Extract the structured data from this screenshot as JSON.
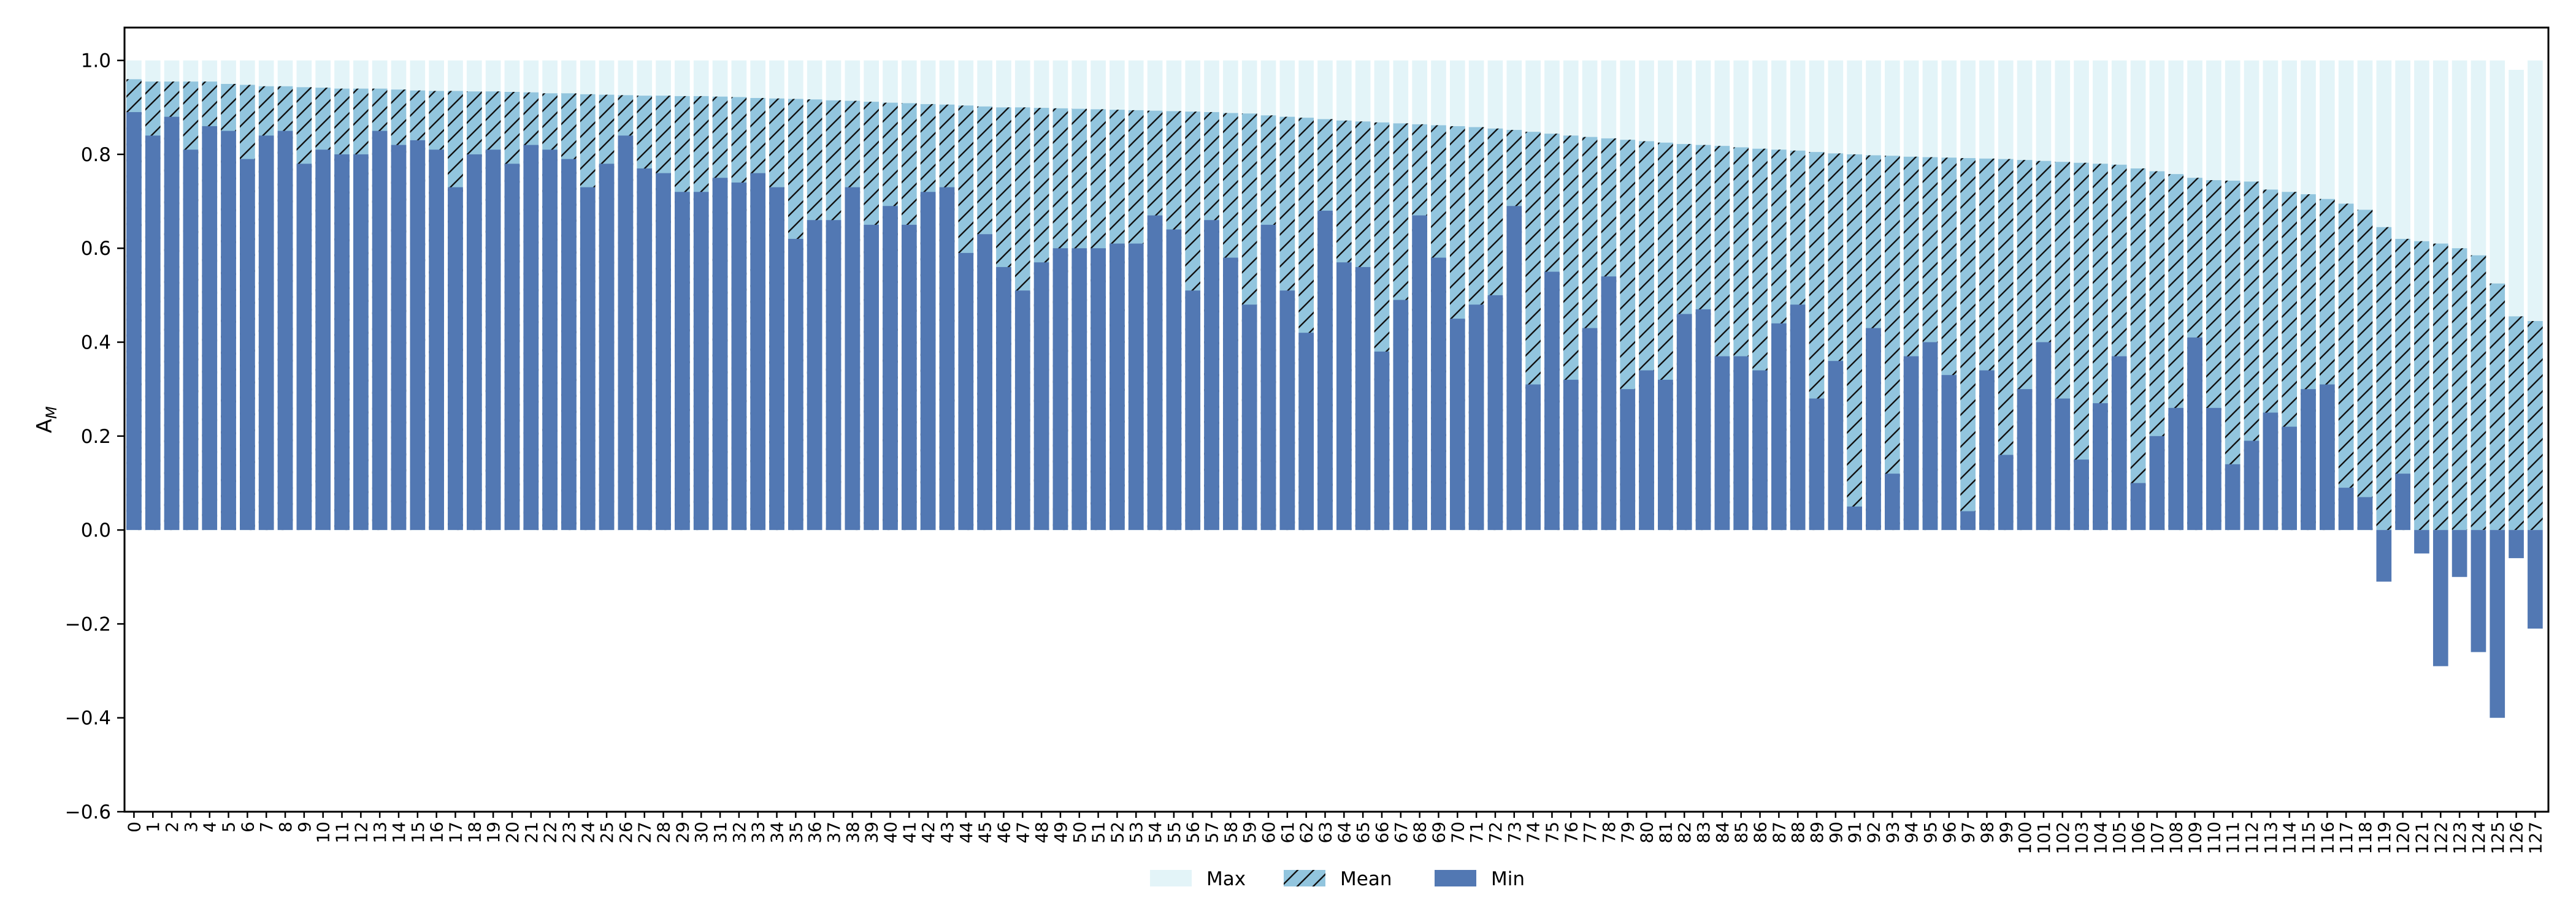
{
  "chart_data": {
    "type": "bar",
    "ylabel": "A",
    "ylabel_sub": "M",
    "ylim": [
      -0.6,
      1.07
    ],
    "yticks": [
      -0.6,
      -0.4,
      -0.2,
      0.0,
      0.2,
      0.4,
      0.6,
      0.8,
      1.0
    ],
    "ytick_labels": [
      "−0.6",
      "−0.4",
      "−0.2",
      "0.0",
      "0.2",
      "0.4",
      "0.6",
      "0.8",
      "1.0"
    ],
    "legend_position": "bottom-center",
    "grid": false,
    "categories": [
      "0",
      "1",
      "2",
      "3",
      "4",
      "5",
      "6",
      "7",
      "8",
      "9",
      "10",
      "11",
      "12",
      "13",
      "14",
      "15",
      "16",
      "17",
      "18",
      "19",
      "20",
      "21",
      "22",
      "23",
      "24",
      "25",
      "26",
      "27",
      "28",
      "29",
      "30",
      "31",
      "32",
      "33",
      "34",
      "35",
      "36",
      "37",
      "38",
      "39",
      "40",
      "41",
      "42",
      "43",
      "44",
      "45",
      "46",
      "47",
      "48",
      "49",
      "50",
      "51",
      "52",
      "53",
      "54",
      "55",
      "56",
      "57",
      "58",
      "59",
      "60",
      "61",
      "62",
      "63",
      "64",
      "65",
      "66",
      "67",
      "68",
      "69",
      "70",
      "71",
      "72",
      "73",
      "74",
      "75",
      "76",
      "77",
      "78",
      "79",
      "80",
      "81",
      "82",
      "83",
      "84",
      "85",
      "86",
      "87",
      "88",
      "89",
      "90",
      "91",
      "92",
      "93",
      "94",
      "95",
      "96",
      "97",
      "98",
      "99",
      "100",
      "101",
      "102",
      "103",
      "104",
      "105",
      "106",
      "107",
      "108",
      "109",
      "110",
      "111",
      "112",
      "113",
      "114",
      "115",
      "116",
      "117",
      "118",
      "119",
      "120",
      "121",
      "122",
      "123",
      "124",
      "125",
      "126",
      "127"
    ],
    "series": [
      {
        "name": "Max",
        "color": "#e3f4f8",
        "values": [
          1.0,
          1.0,
          1.0,
          1.0,
          1.0,
          1.0,
          1.0,
          1.0,
          1.0,
          1.0,
          1.0,
          1.0,
          1.0,
          1.0,
          1.0,
          1.0,
          1.0,
          1.0,
          1.0,
          1.0,
          1.0,
          1.0,
          1.0,
          1.0,
          1.0,
          1.0,
          1.0,
          1.0,
          1.0,
          1.0,
          1.0,
          1.0,
          1.0,
          1.0,
          1.0,
          1.0,
          1.0,
          1.0,
          1.0,
          1.0,
          1.0,
          1.0,
          1.0,
          1.0,
          1.0,
          1.0,
          1.0,
          1.0,
          1.0,
          1.0,
          1.0,
          1.0,
          1.0,
          1.0,
          1.0,
          1.0,
          1.0,
          1.0,
          1.0,
          1.0,
          1.0,
          1.0,
          1.0,
          1.0,
          1.0,
          1.0,
          1.0,
          1.0,
          1.0,
          1.0,
          1.0,
          1.0,
          1.0,
          1.0,
          1.0,
          1.0,
          1.0,
          1.0,
          1.0,
          1.0,
          1.0,
          1.0,
          1.0,
          1.0,
          1.0,
          1.0,
          1.0,
          1.0,
          1.0,
          1.0,
          1.0,
          1.0,
          1.0,
          1.0,
          1.0,
          1.0,
          1.0,
          1.0,
          1.0,
          1.0,
          1.0,
          1.0,
          1.0,
          1.0,
          1.0,
          1.0,
          1.0,
          1.0,
          1.0,
          1.0,
          1.0,
          1.0,
          1.0,
          1.0,
          1.0,
          1.0,
          1.0,
          1.0,
          1.0,
          1.0,
          1.0,
          1.0,
          1.0,
          1.0,
          1.0,
          1.0,
          0.98,
          1.0
        ]
      },
      {
        "name": "Mean",
        "color": "#92c5de",
        "hatch": true,
        "values": [
          0.96,
          0.955,
          0.955,
          0.955,
          0.955,
          0.95,
          0.948,
          0.945,
          0.945,
          0.943,
          0.942,
          0.94,
          0.94,
          0.94,
          0.938,
          0.936,
          0.935,
          0.935,
          0.934,
          0.934,
          0.933,
          0.932,
          0.93,
          0.93,
          0.928,
          0.927,
          0.926,
          0.925,
          0.925,
          0.924,
          0.924,
          0.923,
          0.922,
          0.92,
          0.919,
          0.918,
          0.917,
          0.915,
          0.914,
          0.912,
          0.91,
          0.909,
          0.907,
          0.906,
          0.904,
          0.902,
          0.9,
          0.9,
          0.899,
          0.898,
          0.897,
          0.896,
          0.895,
          0.894,
          0.893,
          0.892,
          0.891,
          0.89,
          0.888,
          0.887,
          0.883,
          0.88,
          0.878,
          0.875,
          0.872,
          0.87,
          0.868,
          0.866,
          0.864,
          0.862,
          0.86,
          0.858,
          0.855,
          0.852,
          0.848,
          0.844,
          0.84,
          0.837,
          0.834,
          0.831,
          0.828,
          0.825,
          0.822,
          0.82,
          0.818,
          0.815,
          0.812,
          0.81,
          0.808,
          0.805,
          0.802,
          0.8,
          0.798,
          0.797,
          0.795,
          0.794,
          0.793,
          0.792,
          0.791,
          0.79,
          0.788,
          0.786,
          0.784,
          0.782,
          0.78,
          0.778,
          0.77,
          0.764,
          0.758,
          0.75,
          0.745,
          0.744,
          0.742,
          0.725,
          0.72,
          0.715,
          0.705,
          0.695,
          0.682,
          0.645,
          0.62,
          0.615,
          0.61,
          0.6,
          0.585,
          0.525,
          0.455,
          0.445
        ]
      },
      {
        "name": "Min",
        "color": "#5278b3",
        "values": [
          0.89,
          0.84,
          0.88,
          0.81,
          0.86,
          0.85,
          0.79,
          0.84,
          0.85,
          0.78,
          0.81,
          0.8,
          0.8,
          0.85,
          0.82,
          0.83,
          0.81,
          0.73,
          0.8,
          0.81,
          0.78,
          0.82,
          0.81,
          0.79,
          0.73,
          0.78,
          0.84,
          0.77,
          0.76,
          0.72,
          0.72,
          0.75,
          0.74,
          0.76,
          0.73,
          0.62,
          0.66,
          0.66,
          0.73,
          0.65,
          0.69,
          0.65,
          0.72,
          0.73,
          0.59,
          0.63,
          0.56,
          0.51,
          0.57,
          0.6,
          0.6,
          0.6,
          0.61,
          0.61,
          0.67,
          0.64,
          0.51,
          0.66,
          0.58,
          0.48,
          0.65,
          0.51,
          0.42,
          0.68,
          0.57,
          0.56,
          0.38,
          0.49,
          0.67,
          0.58,
          0.45,
          0.48,
          0.5,
          0.69,
          0.31,
          0.55,
          0.32,
          0.43,
          0.54,
          0.3,
          0.34,
          0.32,
          0.46,
          0.47,
          0.37,
          0.37,
          0.34,
          0.44,
          0.48,
          0.28,
          0.36,
          0.05,
          0.43,
          0.12,
          0.37,
          0.4,
          0.33,
          0.04,
          0.34,
          0.16,
          0.3,
          0.4,
          0.28,
          0.15,
          0.27,
          0.37,
          0.1,
          0.2,
          0.26,
          0.41,
          0.26,
          0.14,
          0.19,
          0.25,
          0.22,
          0.3,
          0.31,
          0.09,
          0.07,
          -0.11,
          0.12,
          -0.05,
          -0.29,
          -0.1,
          -0.26,
          -0.4,
          -0.06,
          -0.21
        ]
      }
    ]
  }
}
